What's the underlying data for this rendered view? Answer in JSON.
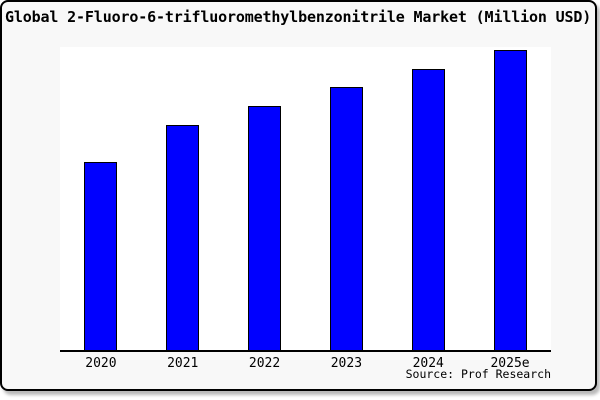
{
  "card": {
    "background": "#f8f8f8",
    "border_color": "#000000",
    "plot_background": "#ffffff"
  },
  "chart_data": {
    "type": "bar",
    "title": "Global 2-Fluoro-6-trifluoromethylbenzonitrile Market (Million USD)",
    "categories": [
      "2020",
      "2021",
      "2022",
      "2023",
      "2024",
      "2025e"
    ],
    "values": [
      62.7,
      75.0,
      81.3,
      87.7,
      93.7,
      100.0
    ],
    "values_note": "y-axis has no scale labels; values estimated as percent of tallest (2025e) bar",
    "xlabel": "",
    "ylabel": "",
    "ylim": [
      0,
      101
    ],
    "grid": false,
    "legend": false,
    "bar_color": "#0000ff",
    "bar_border_color": "#000000",
    "axis_color": "#000000",
    "source_note": "Source: Prof Research"
  }
}
